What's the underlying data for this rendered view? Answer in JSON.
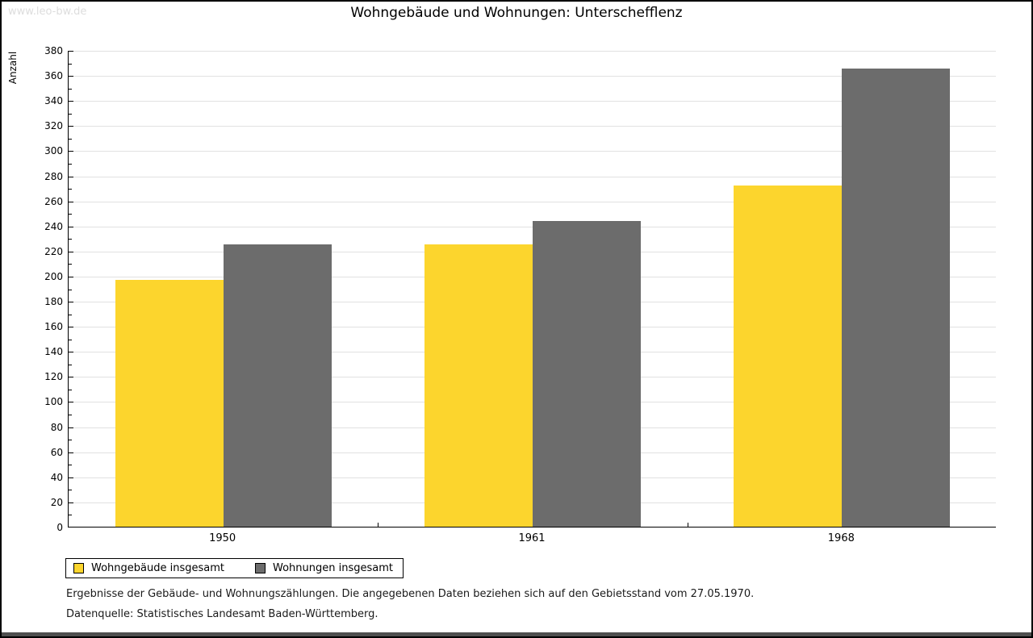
{
  "watermark": "www.leo-bw.de",
  "chart_data": {
    "type": "bar",
    "title": "Wohngebäude und Wohnungen: Unterschefflenz",
    "xlabel": "",
    "ylabel": "Anzahl",
    "categories": [
      "1950",
      "1961",
      "1968"
    ],
    "series": [
      {
        "name": "Wohngebäude insgesamt",
        "color": "#fcd52d",
        "values": [
          197,
          225,
          272
        ]
      },
      {
        "name": "Wohnungen insgesamt",
        "color": "#6c6c6c",
        "values": [
          225,
          244,
          365
        ]
      }
    ],
    "ylim": [
      0,
      380
    ],
    "ytick_step": 20,
    "minor_tick_step": 10,
    "grid": true,
    "legend_position": "bottom-left"
  },
  "footer": {
    "line1": "Ergebnisse der Gebäude- und Wohnungszählungen. Die angegebenen Daten beziehen sich auf den Gebietsstand vom 27.05.1970.",
    "line2": "Datenquelle: Statistisches Landesamt Baden-Württemberg."
  },
  "colors": {
    "bar_yellow": "#fcd52d",
    "bar_gray": "#6c6c6c",
    "gridline": "#e1e1e1",
    "watermark": "#dddddd",
    "bottom_bar": "#4f4f4f",
    "axis": "#000000"
  }
}
